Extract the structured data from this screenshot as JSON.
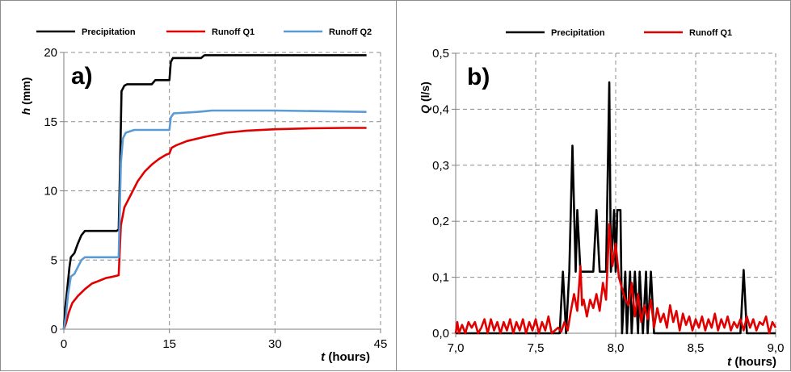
{
  "chart_data": [
    {
      "type": "line",
      "panel_label": "a)",
      "ylabel_symbol": "h",
      "ylabel_unit": " (mm)",
      "xlabel_symbol": "t",
      "xlabel_unit": " (hours)",
      "xlim": [
        0,
        45
      ],
      "ylim": [
        0,
        20
      ],
      "x_ticks": [
        "0",
        "15",
        "30",
        "45"
      ],
      "y_ticks": [
        "0",
        "5",
        "10",
        "15",
        "20"
      ],
      "grid": true,
      "legend_position": "top",
      "series": [
        {
          "name": "Precipitation",
          "color": "#000000",
          "points": [
            [
              0,
              0
            ],
            [
              0.2,
              1.5
            ],
            [
              0.5,
              3
            ],
            [
              0.8,
              4.5
            ],
            [
              1.0,
              5.2
            ],
            [
              1.5,
              5.5
            ],
            [
              2,
              6.2
            ],
            [
              2.5,
              6.8
            ],
            [
              3,
              7.1
            ],
            [
              7.5,
              7.1
            ],
            [
              7.8,
              7.2
            ],
            [
              8.0,
              12
            ],
            [
              8.2,
              17.2
            ],
            [
              8.6,
              17.6
            ],
            [
              9,
              17.7
            ],
            [
              12.5,
              17.7
            ],
            [
              13,
              18.0
            ],
            [
              15,
              18.0
            ],
            [
              15.2,
              19.3
            ],
            [
              15.5,
              19.6
            ],
            [
              19.5,
              19.6
            ],
            [
              20,
              19.8
            ],
            [
              43,
              19.8
            ]
          ]
        },
        {
          "name": "Runoff Q1",
          "color": "#e00000",
          "points": [
            [
              0,
              0
            ],
            [
              0.3,
              0.4
            ],
            [
              0.7,
              1.2
            ],
            [
              1.2,
              1.9
            ],
            [
              2,
              2.4
            ],
            [
              3,
              2.9
            ],
            [
              4,
              3.3
            ],
            [
              5,
              3.5
            ],
            [
              6,
              3.7
            ],
            [
              7,
              3.8
            ],
            [
              7.8,
              3.9
            ],
            [
              8.1,
              7.5
            ],
            [
              8.6,
              8.8
            ],
            [
              9.5,
              9.7
            ],
            [
              10.5,
              10.7
            ],
            [
              11.5,
              11.4
            ],
            [
              12.5,
              11.9
            ],
            [
              13.5,
              12.3
            ],
            [
              14.5,
              12.6
            ],
            [
              15,
              12.7
            ],
            [
              15.3,
              13.1
            ],
            [
              16,
              13.3
            ],
            [
              17.5,
              13.6
            ],
            [
              20,
              13.9
            ],
            [
              23,
              14.2
            ],
            [
              26,
              14.35
            ],
            [
              30,
              14.45
            ],
            [
              35,
              14.52
            ],
            [
              40,
              14.55
            ],
            [
              43,
              14.55
            ]
          ]
        },
        {
          "name": "Runoff Q2",
          "color": "#5b9bd5",
          "points": [
            [
              0,
              0
            ],
            [
              0.3,
              1.0
            ],
            [
              0.6,
              2.5
            ],
            [
              1.0,
              3.8
            ],
            [
              1.5,
              4.0
            ],
            [
              2,
              4.5
            ],
            [
              2.5,
              5.0
            ],
            [
              3,
              5.2
            ],
            [
              7.8,
              5.2
            ],
            [
              8.1,
              12
            ],
            [
              8.4,
              13.8
            ],
            [
              8.8,
              14.2
            ],
            [
              10,
              14.4
            ],
            [
              15,
              14.4
            ],
            [
              15.2,
              15.3
            ],
            [
              15.6,
              15.6
            ],
            [
              19,
              15.7
            ],
            [
              21,
              15.8
            ],
            [
              30,
              15.8
            ],
            [
              43,
              15.7
            ]
          ]
        }
      ]
    },
    {
      "type": "line",
      "panel_label": "b)",
      "ylabel_symbol": "Q",
      "ylabel_unit": " (l/s)",
      "xlabel_symbol": "t",
      "xlabel_unit": " (hours)",
      "xlim": [
        7.0,
        9.0
      ],
      "ylim": [
        0,
        0.5
      ],
      "x_ticks": [
        "7,0",
        "7,5",
        "8,0",
        "8,5",
        "9,0"
      ],
      "y_ticks": [
        "0,0",
        "0,1",
        "0,2",
        "0,3",
        "0,4",
        "0,5"
      ],
      "grid": true,
      "legend_position": "top",
      "series": [
        {
          "name": "Precipitation",
          "color": "#000000",
          "points": [
            [
              7.0,
              0
            ],
            [
              7.65,
              0
            ],
            [
              7.67,
              0.11
            ],
            [
              7.69,
              0
            ],
            [
              7.71,
              0.11
            ],
            [
              7.73,
              0.335
            ],
            [
              7.75,
              0.11
            ],
            [
              7.76,
              0.22
            ],
            [
              7.78,
              0.11
            ],
            [
              7.8,
              0.11
            ],
            [
              7.82,
              0.11
            ],
            [
              7.84,
              0.11
            ],
            [
              7.86,
              0.11
            ],
            [
              7.88,
              0.22
            ],
            [
              7.9,
              0.11
            ],
            [
              7.92,
              0.11
            ],
            [
              7.94,
              0.11
            ],
            [
              7.96,
              0.448
            ],
            [
              7.97,
              0.11
            ],
            [
              7.99,
              0.22
            ],
            [
              8.0,
              0.11
            ],
            [
              8.01,
              0.22
            ],
            [
              8.03,
              0.22
            ],
            [
              8.04,
              0
            ],
            [
              8.06,
              0.11
            ],
            [
              8.07,
              0
            ],
            [
              8.09,
              0.11
            ],
            [
              8.1,
              0
            ],
            [
              8.12,
              0.11
            ],
            [
              8.14,
              0
            ],
            [
              8.15,
              0.11
            ],
            [
              8.17,
              0
            ],
            [
              8.19,
              0.11
            ],
            [
              8.2,
              0
            ],
            [
              8.22,
              0.11
            ],
            [
              8.24,
              0
            ],
            [
              8.78,
              0
            ],
            [
              8.8,
              0.113
            ],
            [
              8.82,
              0
            ],
            [
              9.0,
              0
            ]
          ]
        },
        {
          "name": "Runoff Q1",
          "color": "#e00000",
          "points": [
            [
              7.0,
              0
            ],
            [
              7.01,
              0.02
            ],
            [
              7.02,
              0
            ],
            [
              7.04,
              0.015
            ],
            [
              7.06,
              0
            ],
            [
              7.08,
              0.02
            ],
            [
              7.1,
              0.01
            ],
            [
              7.12,
              0.02
            ],
            [
              7.14,
              0
            ],
            [
              7.16,
              0.01
            ],
            [
              7.18,
              0.025
            ],
            [
              7.2,
              0
            ],
            [
              7.22,
              0.025
            ],
            [
              7.24,
              0.005
            ],
            [
              7.26,
              0.02
            ],
            [
              7.28,
              0
            ],
            [
              7.3,
              0.02
            ],
            [
              7.32,
              0.005
            ],
            [
              7.34,
              0.025
            ],
            [
              7.36,
              0
            ],
            [
              7.38,
              0.02
            ],
            [
              7.4,
              0.005
            ],
            [
              7.42,
              0.025
            ],
            [
              7.44,
              0
            ],
            [
              7.46,
              0.02
            ],
            [
              7.48,
              0.005
            ],
            [
              7.5,
              0.025
            ],
            [
              7.52,
              0
            ],
            [
              7.54,
              0.02
            ],
            [
              7.56,
              0.005
            ],
            [
              7.58,
              0.03
            ],
            [
              7.6,
              0
            ],
            [
              7.62,
              0.005
            ],
            [
              7.64,
              0.01
            ],
            [
              7.66,
              0.003
            ],
            [
              7.68,
              0.02
            ],
            [
              7.7,
              0.005
            ],
            [
              7.72,
              0.04
            ],
            [
              7.74,
              0.07
            ],
            [
              7.76,
              0.04
            ],
            [
              7.78,
              0.12
            ],
            [
              7.79,
              0.05
            ],
            [
              7.8,
              0.06
            ],
            [
              7.82,
              0.03
            ],
            [
              7.84,
              0.06
            ],
            [
              7.86,
              0.045
            ],
            [
              7.88,
              0.07
            ],
            [
              7.9,
              0.04
            ],
            [
              7.92,
              0.09
            ],
            [
              7.94,
              0.06
            ],
            [
              7.96,
              0.195
            ],
            [
              7.98,
              0.12
            ],
            [
              8.0,
              0.16
            ],
            [
              8.02,
              0.1
            ],
            [
              8.04,
              0.08
            ],
            [
              8.06,
              0.06
            ],
            [
              8.08,
              0.05
            ],
            [
              8.1,
              0.09
            ],
            [
              8.12,
              0.03
            ],
            [
              8.14,
              0.07
            ],
            [
              8.16,
              0.02
            ],
            [
              8.18,
              0.05
            ],
            [
              8.2,
              0.025
            ],
            [
              8.22,
              0.06
            ],
            [
              8.24,
              0.01
            ],
            [
              8.26,
              0.045
            ],
            [
              8.28,
              0.02
            ],
            [
              8.3,
              0.035
            ],
            [
              8.32,
              0.01
            ],
            [
              8.34,
              0.05
            ],
            [
              8.36,
              0.02
            ],
            [
              8.38,
              0.04
            ],
            [
              8.4,
              0.005
            ],
            [
              8.42,
              0.035
            ],
            [
              8.44,
              0.015
            ],
            [
              8.46,
              0.03
            ],
            [
              8.48,
              0.005
            ],
            [
              8.5,
              0.025
            ],
            [
              8.52,
              0.01
            ],
            [
              8.54,
              0.03
            ],
            [
              8.56,
              0.005
            ],
            [
              8.58,
              0.025
            ],
            [
              8.6,
              0.01
            ],
            [
              8.62,
              0.035
            ],
            [
              8.64,
              0.005
            ],
            [
              8.66,
              0.025
            ],
            [
              8.68,
              0.01
            ],
            [
              8.7,
              0.03
            ],
            [
              8.72,
              0.005
            ],
            [
              8.74,
              0.02
            ],
            [
              8.76,
              0.01
            ],
            [
              8.78,
              0.025
            ],
            [
              8.8,
              0.005
            ],
            [
              8.82,
              0.03
            ],
            [
              8.84,
              0.01
            ],
            [
              8.86,
              0.025
            ],
            [
              8.88,
              0.005
            ],
            [
              8.9,
              0.02
            ],
            [
              8.92,
              0.015
            ],
            [
              8.94,
              0.03
            ],
            [
              8.96,
              0
            ],
            [
              8.98,
              0.02
            ],
            [
              9.0,
              0.01
            ]
          ]
        }
      ]
    }
  ]
}
